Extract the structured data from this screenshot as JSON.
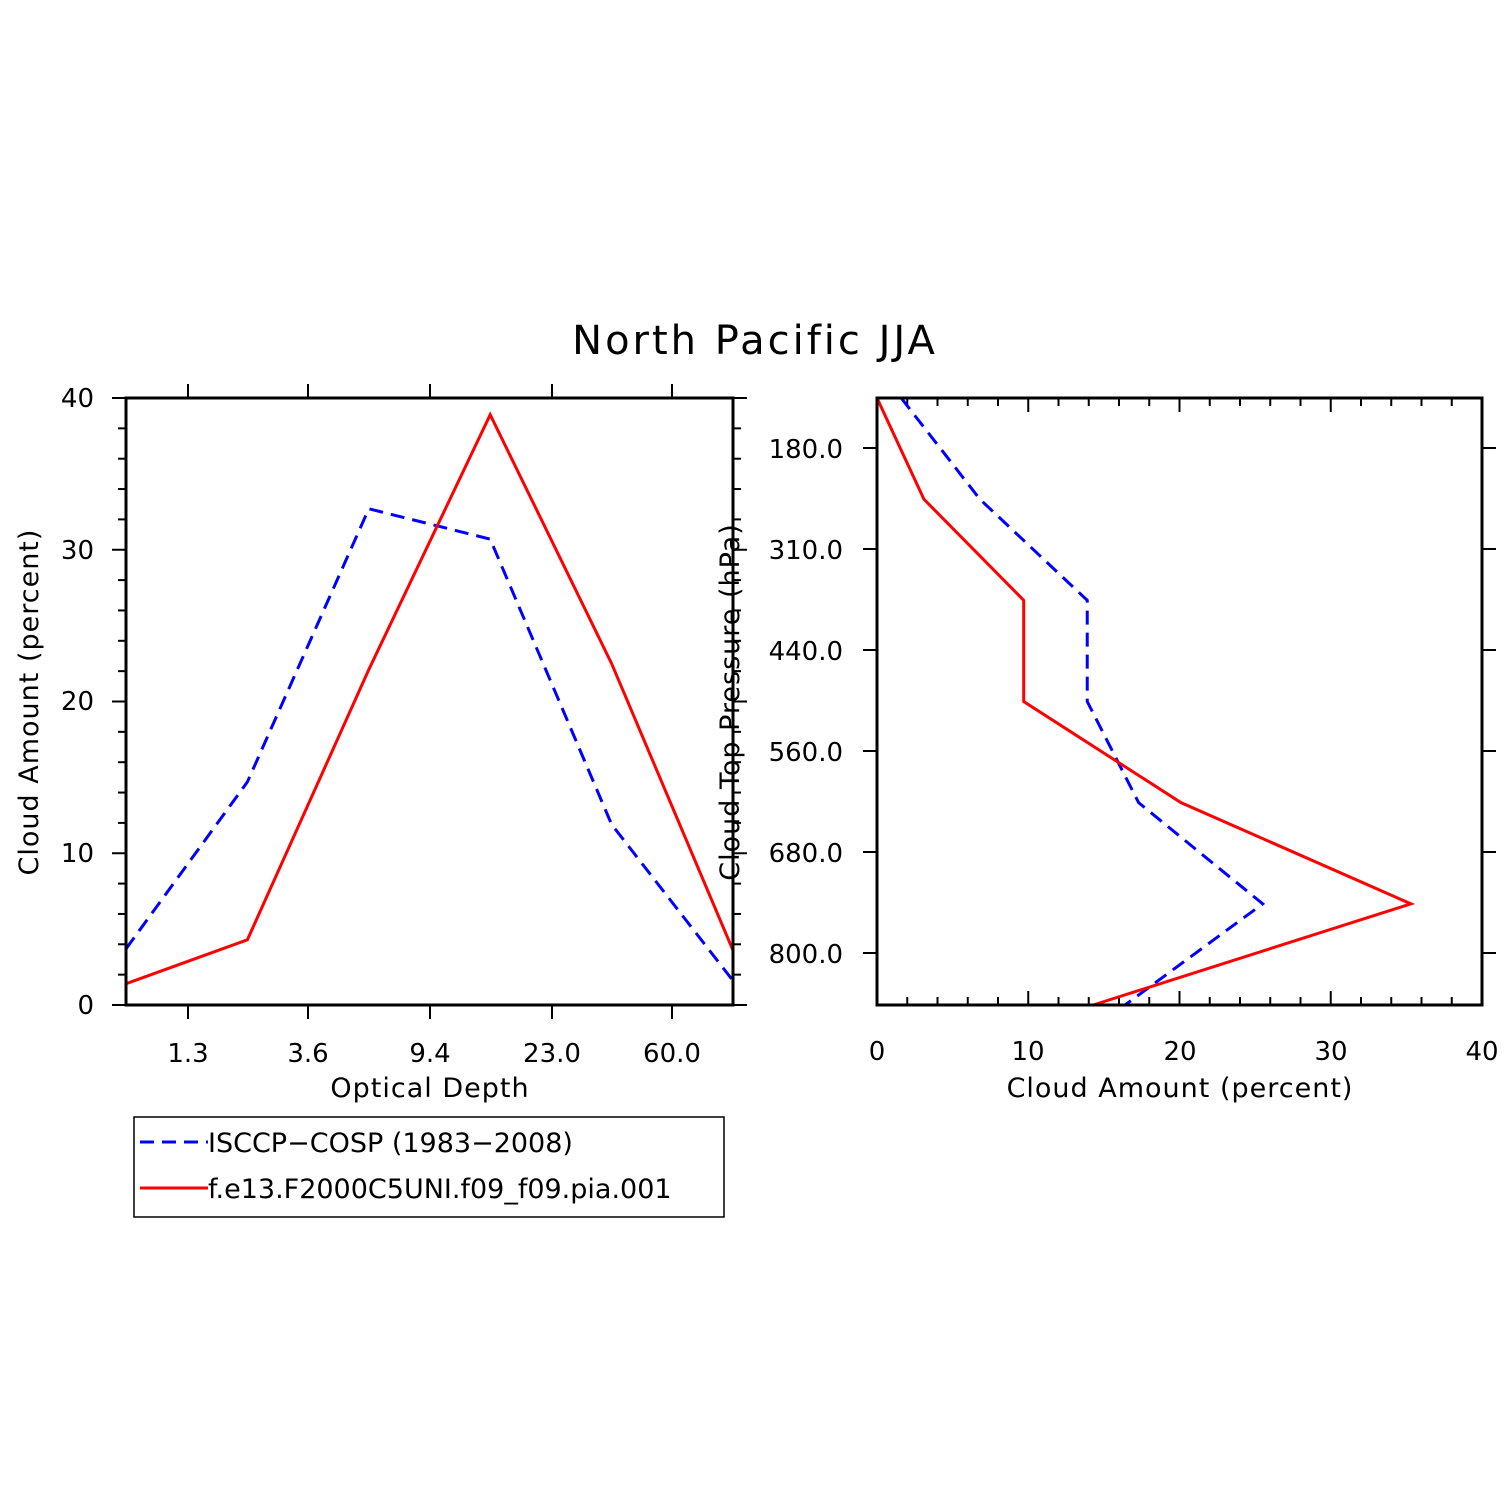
{
  "title": "North Pacific JJA",
  "legend": {
    "entries": [
      {
        "label": "ISCCP−COSP (1983−2008)",
        "color": "#0000ff",
        "dash": true
      },
      {
        "label": "f.e13.F2000C5UNI.f09_f09.pia.001",
        "color": "#ff0000",
        "dash": false
      }
    ]
  },
  "chart_data": [
    {
      "type": "line",
      "xlabel": "Optical Depth",
      "ylabel": "Cloud Amount (percent)",
      "x_tick_labels": [
        "1.3",
        "3.6",
        "9.4",
        "23.0",
        "60.0"
      ],
      "y_tick_labels": [
        "0",
        "10",
        "20",
        "30",
        "40"
      ],
      "ylim": [
        0,
        40
      ],
      "x_bins": 7,
      "series": [
        {
          "name": "ISCCP−COSP (1983−2008)",
          "color": "#0000ff",
          "dash": true,
          "values": [
            3.7,
            14.7,
            32.7,
            30.7,
            11.9,
            1.6
          ]
        },
        {
          "name": "f.e13.F2000C5UNI.f09_f09.pia.001",
          "color": "#ff0000",
          "dash": false,
          "values": [
            1.4,
            4.3,
            22.1,
            38.9,
            22.5,
            3.6
          ]
        }
      ]
    },
    {
      "type": "line",
      "xlabel": "Cloud Amount (percent)",
      "ylabel": "Cloud Top Pressure (hPa)",
      "x_tick_labels": [
        "0",
        "10",
        "20",
        "30",
        "40"
      ],
      "xlim": [
        0,
        40
      ],
      "y_tick_labels": [
        "180.0",
        "310.0",
        "440.0",
        "560.0",
        "680.0",
        "800.0"
      ],
      "y_bins": 6,
      "series": [
        {
          "name": "ISCCP−COSP (1983−2008)",
          "color": "#0000ff",
          "dash": true,
          "values": [
            1.6,
            6.8,
            13.9,
            13.9,
            17.3,
            25.5,
            16.4
          ]
        },
        {
          "name": "f.e13.F2000C5UNI.f09_f09.pia.001",
          "color": "#ff0000",
          "dash": false,
          "values": [
            0.0,
            3.1,
            9.7,
            9.7,
            20.1,
            35.3,
            14.3
          ]
        }
      ]
    }
  ]
}
